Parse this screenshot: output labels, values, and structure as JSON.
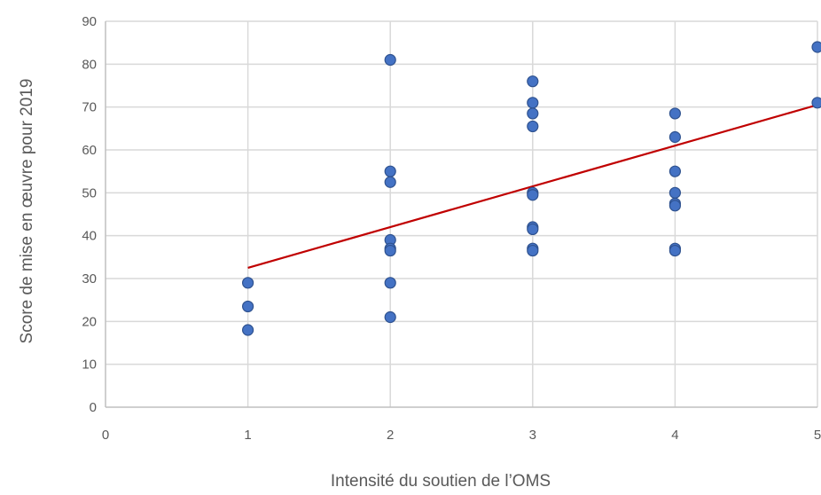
{
  "chart_data": {
    "type": "scatter",
    "xlabel": "Intensité du soutien de l’OMS",
    "ylabel": "Score de mise en œuvre pour 2019",
    "xlim": [
      0,
      5
    ],
    "ylim": [
      0,
      90
    ],
    "x_ticks": [
      0,
      1,
      2,
      3,
      4,
      5
    ],
    "y_ticks": [
      0,
      10,
      20,
      30,
      40,
      50,
      60,
      70,
      80,
      90
    ],
    "grid": true,
    "legend": "none",
    "series": [
      {
        "color": "#4472c4",
        "points": [
          {
            "x": 1,
            "y": 29
          },
          {
            "x": 1,
            "y": 23.5
          },
          {
            "x": 1,
            "y": 18
          },
          {
            "x": 2,
            "y": 81
          },
          {
            "x": 2,
            "y": 55
          },
          {
            "x": 2,
            "y": 52.5
          },
          {
            "x": 2,
            "y": 39
          },
          {
            "x": 2,
            "y": 37
          },
          {
            "x": 2,
            "y": 36.5
          },
          {
            "x": 2,
            "y": 29
          },
          {
            "x": 2,
            "y": 21
          },
          {
            "x": 3,
            "y": 76
          },
          {
            "x": 3,
            "y": 71
          },
          {
            "x": 3,
            "y": 68.5
          },
          {
            "x": 3,
            "y": 65.5
          },
          {
            "x": 3,
            "y": 50
          },
          {
            "x": 3,
            "y": 49.5
          },
          {
            "x": 3,
            "y": 42
          },
          {
            "x": 3,
            "y": 41.5
          },
          {
            "x": 3,
            "y": 37
          },
          {
            "x": 3,
            "y": 36.5
          },
          {
            "x": 4,
            "y": 68.5
          },
          {
            "x": 4,
            "y": 63
          },
          {
            "x": 4,
            "y": 55
          },
          {
            "x": 4,
            "y": 50
          },
          {
            "x": 4,
            "y": 47.5
          },
          {
            "x": 4,
            "y": 47
          },
          {
            "x": 4,
            "y": 37
          },
          {
            "x": 4,
            "y": 36.5
          },
          {
            "x": 5,
            "y": 84
          },
          {
            "x": 5,
            "y": 71
          }
        ]
      }
    ],
    "trendline": {
      "color": "#c00000",
      "x": [
        1,
        5
      ],
      "y": [
        32.5,
        70.5
      ]
    }
  }
}
